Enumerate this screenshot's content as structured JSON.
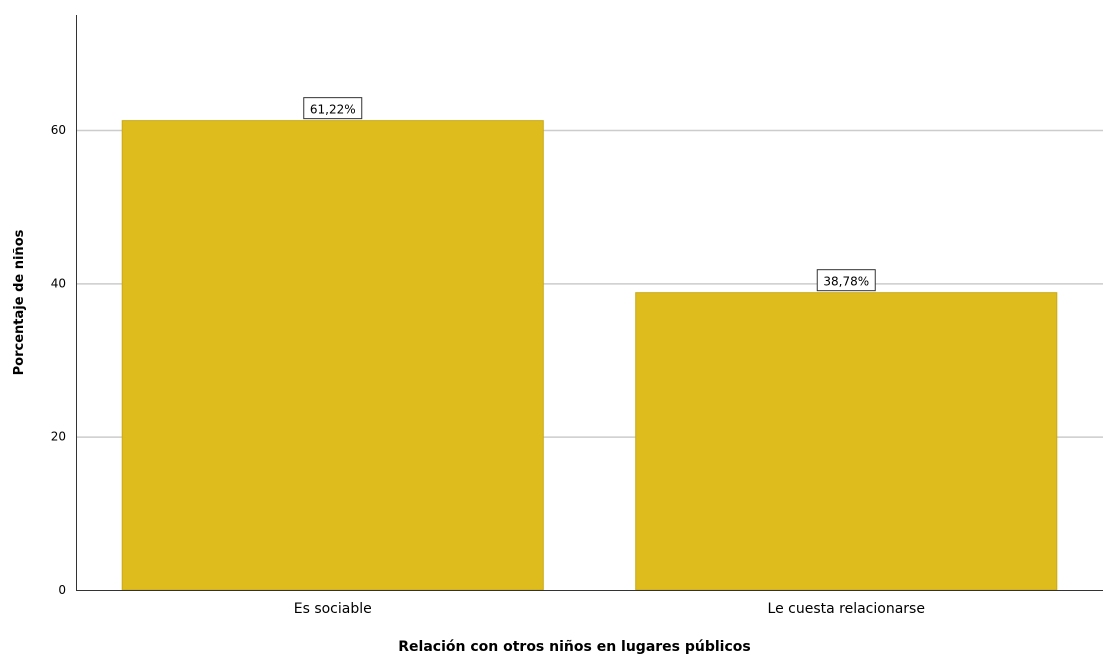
{
  "chart_data": {
    "type": "bar",
    "title": "",
    "xlabel": "Relación con otros niños en lugares públicos",
    "ylabel": "Porcentaje de niños",
    "categories": [
      "Es sociable",
      "Le cuesta relacionarse"
    ],
    "values": [
      61.22,
      38.78
    ],
    "data_labels": [
      "61,22%",
      "38,78%"
    ],
    "ylim": [
      0,
      75
    ],
    "yticks": [
      0,
      20,
      40,
      60
    ],
    "ytick_labels": [
      "0",
      "20",
      "40",
      "60"
    ],
    "grid": "horizontal",
    "legend": "none",
    "colors": {
      "bar": "#DFBC1E",
      "bar_stroke": "#C9A915",
      "grid": "#CCCCCC",
      "axis": "#333333",
      "text": "#000000",
      "label_box_border": "#333333",
      "label_box_fill": "#FFFFFF"
    }
  }
}
